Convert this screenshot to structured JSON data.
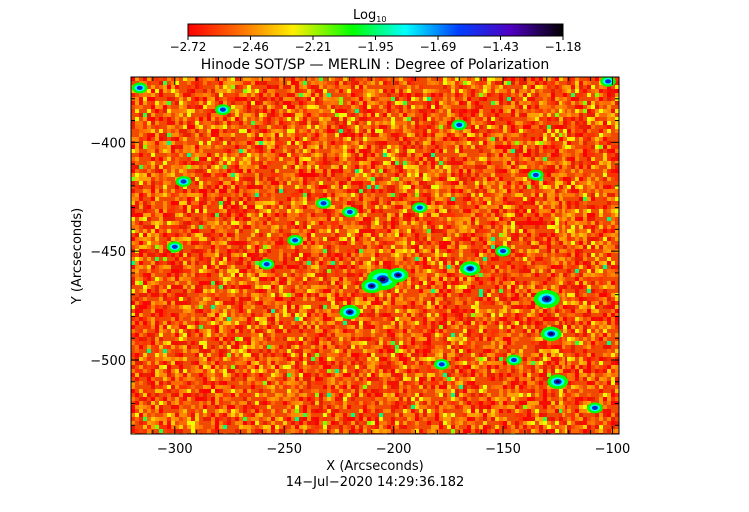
{
  "chart_data": {
    "type": "heatmap",
    "title": "Hinode SOT/SP — MERLIN : Degree of Polarization",
    "colorbar": {
      "label": "Log",
      "label_subscript": "10",
      "min": -2.72,
      "max": -1.18,
      "ticks": [
        "−2.72",
        "−2.46",
        "−2.21",
        "−1.95",
        "−1.69",
        "−1.43",
        "−1.18"
      ],
      "colormap": "rainbow (red → orange → yellow → green → cyan → blue → violet → black)"
    },
    "xlabel": "X (Arcseconds)",
    "ylabel": "Y (Arcseconds)",
    "xlim": [
      -320,
      -97
    ],
    "ylim": [
      -534,
      -370
    ],
    "xticks": [
      -300,
      -250,
      -200,
      -150,
      -100
    ],
    "yticks": [
      -400,
      -450,
      -500
    ],
    "xtick_labels": [
      "−300",
      "−250",
      "−200",
      "−150",
      "−100"
    ],
    "ytick_labels": [
      "−400",
      "−450",
      "−500"
    ],
    "timestamp": "14−Jul−2020 14:29:36.182",
    "dominant_level_log10": -2.62,
    "colors": {
      "dominant": "#f04a00",
      "red": "#ff0000",
      "orange": "#ff8000",
      "yellow": "#ffff00",
      "green": "#00ff00",
      "cyan": "#00ffff",
      "blue": "#0000ff",
      "violet": "#8000ff",
      "black": "#000000"
    }
  }
}
